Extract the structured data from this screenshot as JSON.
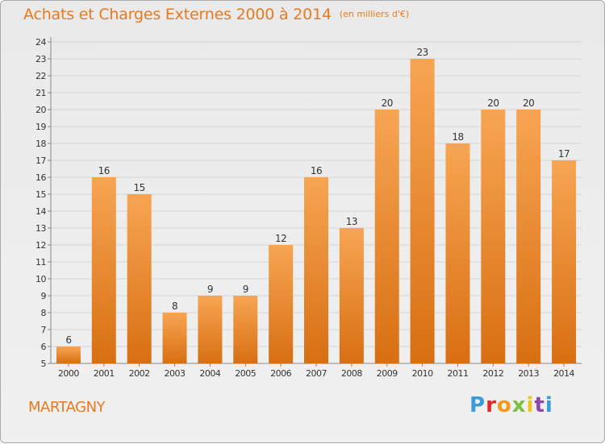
{
  "header": {
    "title": "Achats et Charges Externes 2000 à 2014",
    "unit": "(en milliers d'€)"
  },
  "footer": {
    "town": "MARTAGNY",
    "brand": "Proxiti"
  },
  "colors": {
    "accent": "#e87a1e",
    "bar_top": "#f7a553",
    "bar_bottom": "#d86f12",
    "grid": "#d4d4d4"
  },
  "chart_data": {
    "type": "bar",
    "title": "Achats et Charges Externes 2000 à 2014",
    "subtitle": "(en milliers d'€)",
    "xlabel": "",
    "ylabel": "",
    "categories": [
      "2000",
      "2001",
      "2002",
      "2003",
      "2004",
      "2005",
      "2006",
      "2007",
      "2008",
      "2009",
      "2010",
      "2011",
      "2012",
      "2013",
      "2014"
    ],
    "values": [
      6,
      16,
      15,
      8,
      9,
      9,
      12,
      16,
      13,
      20,
      23,
      18,
      20,
      20,
      17
    ],
    "ylim": [
      5,
      24
    ],
    "yticks": [
      5,
      6,
      7,
      8,
      9,
      10,
      11,
      12,
      13,
      14,
      15,
      16,
      17,
      18,
      19,
      20,
      21,
      22,
      23,
      24
    ],
    "grid": true,
    "legend": "none"
  }
}
